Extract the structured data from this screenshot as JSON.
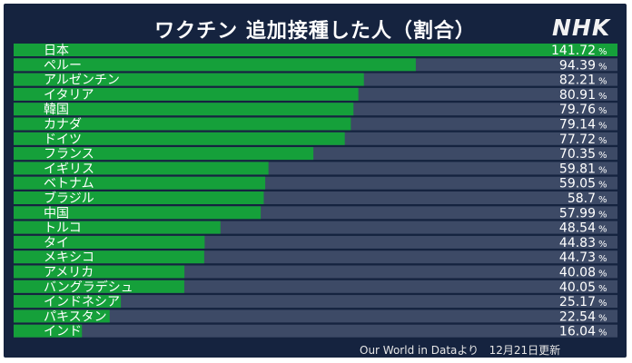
{
  "header": {
    "title": "ワクチン 追加接種した人（割合）",
    "logo": "NHK"
  },
  "footer": {
    "source": "Our World in Dataより",
    "date": "12月21日更新"
  },
  "colors": {
    "background": "#15233f",
    "bar_fill": "#15a03a",
    "bar_track": "#3d4a66"
  },
  "chart_data": {
    "type": "bar",
    "orientation": "horizontal",
    "title": "ワクチン 追加接種した人（割合）",
    "categories": [
      "日本",
      "ペルー",
      "アルゼンチン",
      "イタリア",
      "韓国",
      "カナダ",
      "ドイツ",
      "フランス",
      "イギリス",
      "ベトナム",
      "ブラジル",
      "中国",
      "トルコ",
      "タイ",
      "メキシコ",
      "アメリカ",
      "バングラデシュ",
      "インドネシア",
      "パキスタン",
      "インド"
    ],
    "values": [
      141.72,
      94.39,
      82.21,
      80.91,
      79.76,
      79.14,
      77.72,
      70.35,
      59.81,
      59.05,
      58.7,
      57.99,
      48.54,
      44.83,
      44.73,
      40.08,
      40.05,
      25.17,
      22.54,
      16.04
    ],
    "value_labels": [
      "141.72",
      "94.39",
      "82.21",
      "80.91",
      "79.76",
      "79.14",
      "77.72",
      "70.35",
      "59.81",
      "59.05",
      "58.7",
      "57.99",
      "48.54",
      "44.83",
      "44.73",
      "40.08",
      "40.05",
      "25.17",
      "22.54",
      "16.04"
    ],
    "unit": "%",
    "xlim": [
      0,
      141.72
    ]
  }
}
